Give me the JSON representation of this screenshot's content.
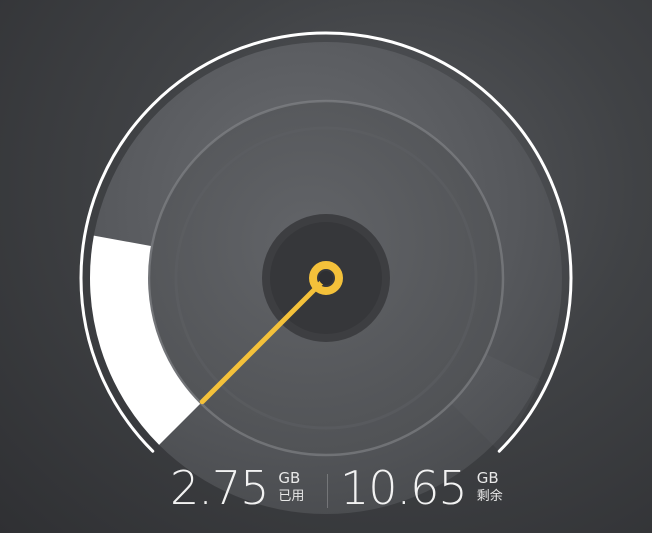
{
  "storage": {
    "used": {
      "value": "2.75",
      "unit": "GB",
      "label": "已用"
    },
    "remaining": {
      "value": "10.65",
      "unit": "GB",
      "label": "剩余"
    },
    "used_fraction": 0.205
  },
  "colors": {
    "needle": "#f4c13a",
    "fill": "#ffffff",
    "rim": "#ffffff"
  }
}
